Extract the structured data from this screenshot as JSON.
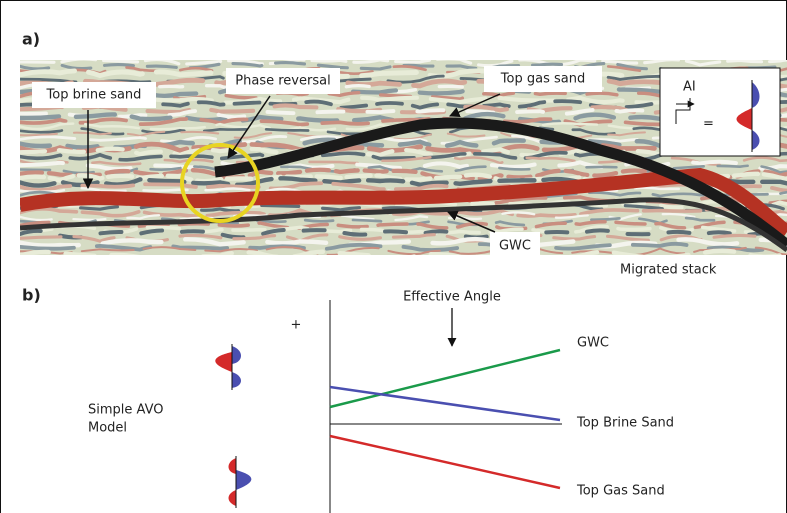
{
  "panel_a": {
    "label": "a)",
    "annotations": {
      "top_brine_sand": "Top brine sand",
      "phase_reversal": "Phase reversal",
      "top_gas_sand": "Top gas sand",
      "gwc": "GWC"
    },
    "inset": {
      "ai": "AI",
      "equals": "="
    },
    "caption": "Migrated stack"
  },
  "panel_b": {
    "label": "b)",
    "axis_title": "Effective Angle",
    "plus": "+",
    "model_label": [
      "Simple AVO",
      "Model"
    ],
    "lines": {
      "gwc": "GWC",
      "top_brine_sand": "Top Brine Sand",
      "top_gas_sand": "Top Gas Sand"
    }
  }
}
